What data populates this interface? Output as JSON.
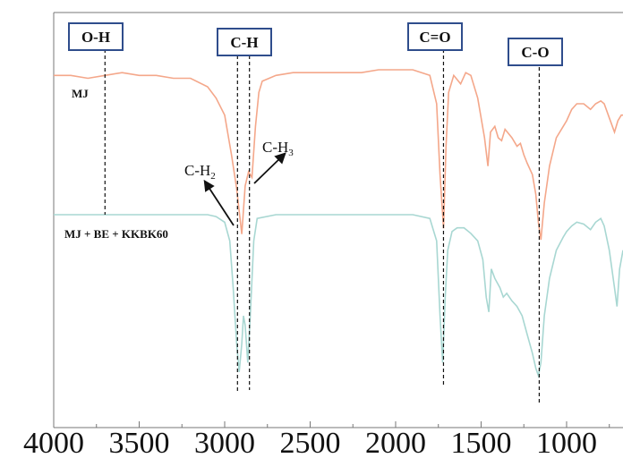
{
  "chart_data": {
    "type": "line",
    "title": "",
    "xlabel": "",
    "ylabel": "",
    "x_reversed": true,
    "xlim": [
      4000,
      670
    ],
    "x_ticks": [
      4000,
      3500,
      3000,
      2500,
      2000,
      1500,
      1000
    ],
    "x_tick_labels": [
      "4000",
      "3500",
      "3000",
      "2500",
      "2000",
      "1500",
      "1000"
    ],
    "grid": false,
    "series": [
      {
        "name": "MJ",
        "color": "#f4a78a",
        "points": [
          [
            4000,
            0.8
          ],
          [
            3900,
            0.8
          ],
          [
            3800,
            0.79
          ],
          [
            3700,
            0.8
          ],
          [
            3600,
            0.81
          ],
          [
            3500,
            0.8
          ],
          [
            3400,
            0.8
          ],
          [
            3300,
            0.79
          ],
          [
            3200,
            0.79
          ],
          [
            3100,
            0.76
          ],
          [
            3050,
            0.72
          ],
          [
            3000,
            0.66
          ],
          [
            2960,
            0.52
          ],
          [
            2930,
            0.4
          ],
          [
            2900,
            0.24
          ],
          [
            2880,
            0.41
          ],
          [
            2860,
            0.46
          ],
          [
            2840,
            0.44
          ],
          [
            2820,
            0.62
          ],
          [
            2800,
            0.74
          ],
          [
            2780,
            0.78
          ],
          [
            2700,
            0.8
          ],
          [
            2600,
            0.81
          ],
          [
            2500,
            0.81
          ],
          [
            2400,
            0.81
          ],
          [
            2300,
            0.81
          ],
          [
            2200,
            0.81
          ],
          [
            2100,
            0.82
          ],
          [
            2000,
            0.82
          ],
          [
            1900,
            0.82
          ],
          [
            1800,
            0.8
          ],
          [
            1760,
            0.7
          ],
          [
            1740,
            0.45
          ],
          [
            1720,
            0.26
          ],
          [
            1705,
            0.55
          ],
          [
            1690,
            0.74
          ],
          [
            1660,
            0.8
          ],
          [
            1620,
            0.77
          ],
          [
            1590,
            0.81
          ],
          [
            1560,
            0.8
          ],
          [
            1520,
            0.72
          ],
          [
            1480,
            0.58
          ],
          [
            1460,
            0.48
          ],
          [
            1445,
            0.6
          ],
          [
            1420,
            0.62
          ],
          [
            1400,
            0.58
          ],
          [
            1380,
            0.57
          ],
          [
            1360,
            0.61
          ],
          [
            1320,
            0.58
          ],
          [
            1290,
            0.55
          ],
          [
            1270,
            0.56
          ],
          [
            1250,
            0.52
          ],
          [
            1230,
            0.49
          ],
          [
            1200,
            0.45
          ],
          [
            1180,
            0.38
          ],
          [
            1165,
            0.28
          ],
          [
            1150,
            0.22
          ],
          [
            1130,
            0.35
          ],
          [
            1100,
            0.48
          ],
          [
            1060,
            0.58
          ],
          [
            1020,
            0.62
          ],
          [
            1000,
            0.64
          ],
          [
            970,
            0.68
          ],
          [
            940,
            0.7
          ],
          [
            900,
            0.7
          ],
          [
            860,
            0.68
          ],
          [
            830,
            0.7
          ],
          [
            800,
            0.71
          ],
          [
            780,
            0.7
          ],
          [
            750,
            0.65
          ],
          [
            720,
            0.6
          ],
          [
            700,
            0.64
          ],
          [
            680,
            0.66
          ],
          [
            670,
            0.66
          ]
        ]
      },
      {
        "name": "MJ + BE + KKBK60",
        "color": "#a8d7d2",
        "points": [
          [
            4000,
            0.24
          ],
          [
            3900,
            0.24
          ],
          [
            3800,
            0.24
          ],
          [
            3700,
            0.24
          ],
          [
            3600,
            0.24
          ],
          [
            3500,
            0.24
          ],
          [
            3400,
            0.24
          ],
          [
            3300,
            0.24
          ],
          [
            3200,
            0.24
          ],
          [
            3100,
            0.24
          ],
          [
            3050,
            0.23
          ],
          [
            3000,
            0.2
          ],
          [
            2970,
            0.1
          ],
          [
            2950,
            -0.15
          ],
          [
            2930,
            -0.45
          ],
          [
            2915,
            -0.6
          ],
          [
            2900,
            -0.45
          ],
          [
            2890,
            -0.3
          ],
          [
            2880,
            -0.35
          ],
          [
            2865,
            -0.55
          ],
          [
            2850,
            -0.3
          ],
          [
            2830,
            0.1
          ],
          [
            2810,
            0.22
          ],
          [
            2700,
            0.24
          ],
          [
            2600,
            0.24
          ],
          [
            2500,
            0.24
          ],
          [
            2400,
            0.24
          ],
          [
            2300,
            0.24
          ],
          [
            2200,
            0.24
          ],
          [
            2100,
            0.24
          ],
          [
            2000,
            0.24
          ],
          [
            1900,
            0.24
          ],
          [
            1800,
            0.22
          ],
          [
            1760,
            0.1
          ],
          [
            1740,
            -0.3
          ],
          [
            1725,
            -0.55
          ],
          [
            1710,
            -0.2
          ],
          [
            1695,
            0.05
          ],
          [
            1670,
            0.15
          ],
          [
            1640,
            0.17
          ],
          [
            1600,
            0.17
          ],
          [
            1560,
            0.14
          ],
          [
            1520,
            0.1
          ],
          [
            1490,
            0.0
          ],
          [
            1470,
            -0.2
          ],
          [
            1455,
            -0.28
          ],
          [
            1440,
            -0.05
          ],
          [
            1420,
            -0.1
          ],
          [
            1390,
            -0.15
          ],
          [
            1370,
            -0.2
          ],
          [
            1350,
            -0.18
          ],
          [
            1320,
            -0.22
          ],
          [
            1290,
            -0.25
          ],
          [
            1260,
            -0.3
          ],
          [
            1230,
            -0.4
          ],
          [
            1200,
            -0.5
          ],
          [
            1180,
            -0.58
          ],
          [
            1165,
            -0.62
          ],
          [
            1150,
            -0.55
          ],
          [
            1130,
            -0.3
          ],
          [
            1100,
            -0.1
          ],
          [
            1060,
            0.05
          ],
          [
            1020,
            0.12
          ],
          [
            1000,
            0.15
          ],
          [
            970,
            0.18
          ],
          [
            940,
            0.2
          ],
          [
            900,
            0.19
          ],
          [
            860,
            0.16
          ],
          [
            830,
            0.2
          ],
          [
            800,
            0.22
          ],
          [
            780,
            0.18
          ],
          [
            750,
            0.05
          ],
          [
            720,
            -0.15
          ],
          [
            705,
            -0.25
          ],
          [
            690,
            -0.05
          ],
          [
            670,
            0.05
          ]
        ]
      }
    ],
    "band_markers": [
      {
        "label": "O-H",
        "wavenumber": 3700
      },
      {
        "label": "C-H",
        "wavenumber": 2900
      },
      {
        "label": "C=O",
        "wavenumber": 1720
      },
      {
        "label": "C-O",
        "wavenumber": 1160
      }
    ],
    "dashed_lines": [
      3700,
      2925,
      2855,
      1720,
      1160
    ],
    "annotations": [
      {
        "label": "C-H",
        "subscript": "2"
      },
      {
        "label": "C-H",
        "subscript": "3"
      }
    ]
  }
}
